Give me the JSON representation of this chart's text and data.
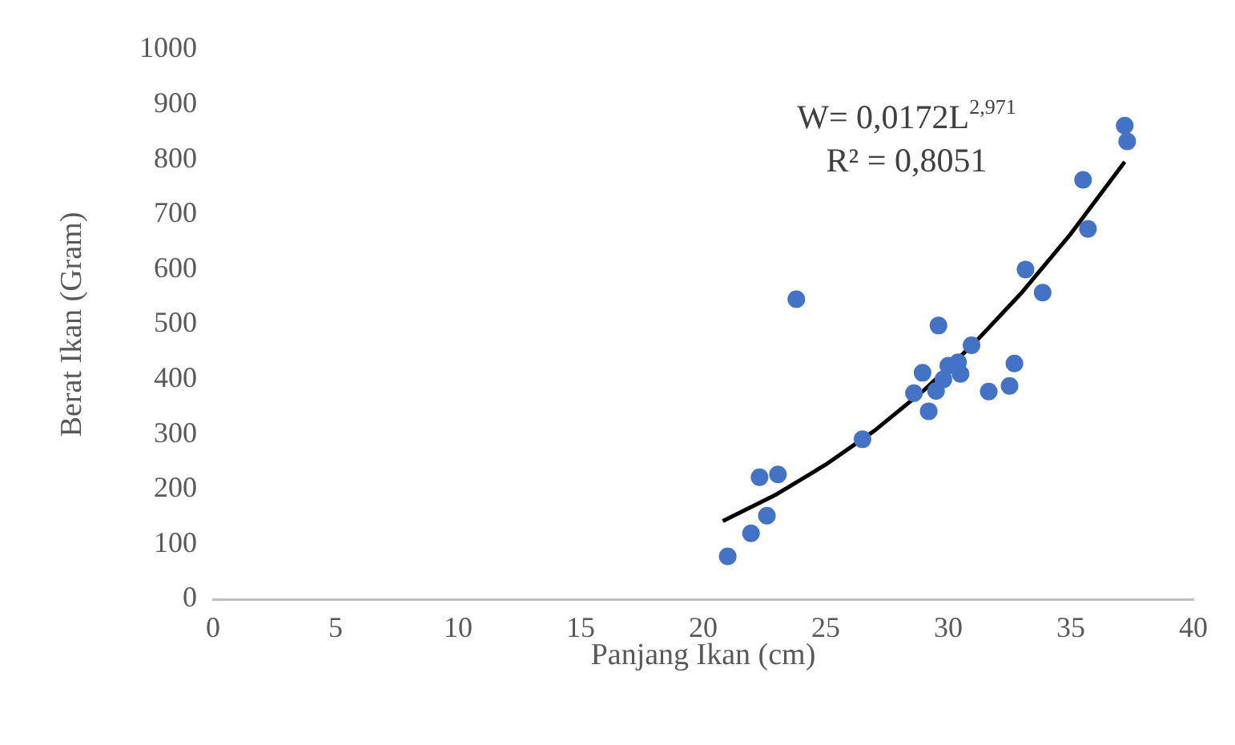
{
  "chart_data": {
    "type": "scatter",
    "xlabel": "Panjang Ikan (cm)",
    "ylabel": "Berat Ikan (Gram)",
    "xlim": [
      0,
      40
    ],
    "xticks": [
      0,
      5,
      10,
      15,
      20,
      25,
      30,
      35,
      40
    ],
    "ylim": [
      0,
      1000
    ],
    "yticks": [
      0,
      100,
      200,
      300,
      400,
      500,
      600,
      700,
      800,
      900,
      1000
    ],
    "grid": false,
    "legend": false,
    "marker": "circle",
    "annotations": [
      "W= 0,0172L$^{2,971}$",
      "R² = 0,8051"
    ],
    "series": [
      {
        "color": "#4472c4",
        "x": [
          21.0,
          21.95,
          22.6,
          22.3,
          23.05,
          23.8,
          26.5,
          28.6,
          28.95,
          29.2,
          29.5,
          29.6,
          29.8,
          30.0,
          30.4,
          30.5,
          30.95,
          31.65,
          32.5,
          32.7,
          33.15,
          33.85,
          35.5,
          35.7,
          37.2,
          37.3
        ],
        "values": [
          78,
          120,
          152,
          222,
          227,
          546,
          291,
          375,
          412,
          342,
          379,
          498,
          400,
          425,
          431,
          410,
          462,
          378,
          388,
          429,
          600,
          558,
          763,
          674,
          862,
          833
        ]
      },
      {
        "type": "line",
        "color": "#000000",
        "marker": "none",
        "x": [
          20.8,
          23,
          25,
          27,
          29,
          31,
          33,
          35,
          37.2
        ],
        "values": [
          142,
          191,
          245,
          307,
          380,
          463,
          558,
          665,
          796
        ]
      }
    ]
  }
}
